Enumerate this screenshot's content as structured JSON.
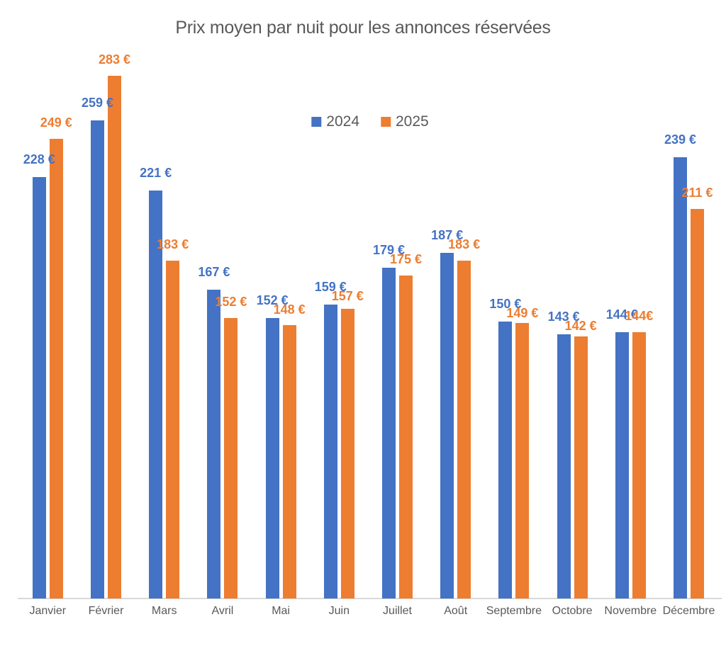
{
  "chart_data": {
    "type": "bar",
    "title": "Prix moyen par nuit pour les annonces réservées",
    "xlabel": "",
    "ylabel": "",
    "ylim": [
      0,
      290
    ],
    "grid": false,
    "legend_position": "top-center",
    "axis_line_color": "#d9d9d9",
    "text_color": "#595959",
    "categories": [
      "Janvier",
      "Février",
      "Mars",
      "Avril",
      "Mai",
      "Juin",
      "Juillet",
      "Août",
      "Septembre",
      "Octobre",
      "Novembre",
      "Décembre"
    ],
    "series": [
      {
        "name": "2024",
        "color": "#4472c4",
        "values": [
          228,
          259,
          221,
          167,
          152,
          159,
          179,
          187,
          150,
          143,
          144,
          239
        ],
        "labels": [
          "228 €",
          "259 €",
          "221 €",
          "167 €",
          "152 €",
          "159 €",
          "179 €",
          "187 €",
          "150 €",
          "143 €",
          "144 €",
          "239 €"
        ]
      },
      {
        "name": "2025",
        "color": "#ed7d31",
        "values": [
          249,
          283,
          183,
          152,
          148,
          157,
          175,
          183,
          149,
          142,
          144,
          211
        ],
        "labels": [
          "249 €",
          "283 €",
          "183 €",
          "152 €",
          "148 €",
          "157 €",
          "175 €",
          "183 €",
          "149 €",
          "142 €",
          "144€",
          "211 €"
        ]
      }
    ]
  }
}
